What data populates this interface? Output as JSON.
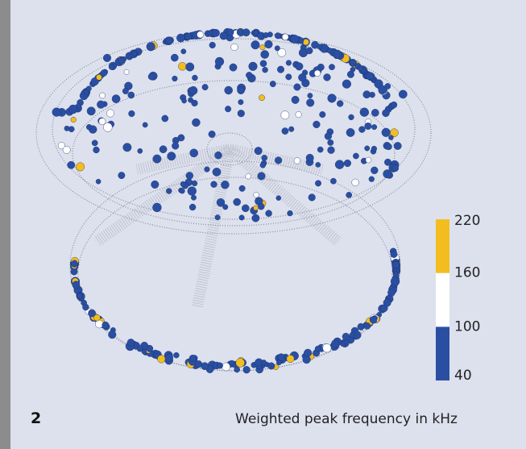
{
  "figure_number": "2",
  "caption": "Weighted peak frequency in kHz",
  "colorbar": {
    "lim": [
      40,
      220
    ],
    "ticks": [
      40,
      100,
      160,
      220
    ],
    "colors": [
      "#2a4fa2",
      "#ffffff",
      "#f3bd1f"
    ]
  }
}
